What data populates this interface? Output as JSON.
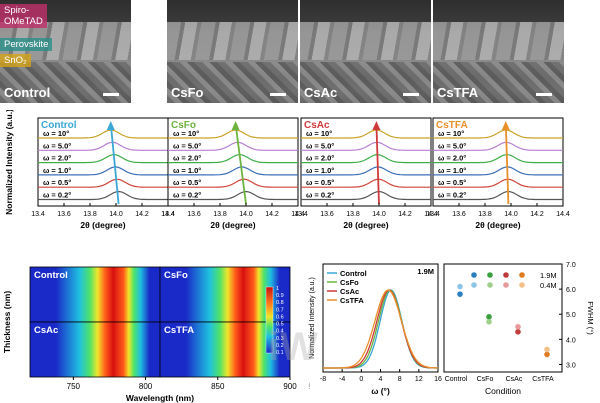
{
  "sem_panels": [
    {
      "label": "Control"
    },
    {
      "label": "CsFo"
    },
    {
      "label": "CsAc"
    },
    {
      "label": "CsTFA"
    }
  ],
  "sem_layers": [
    "Spiro-\nOMeTAD",
    "Perovskite",
    "SnO₂"
  ],
  "layer_colors": [
    "#c0306a",
    "#2a8f8a",
    "#d4a417"
  ],
  "gixrd": {
    "ylabel": "Normalized Intensity (a.u.)",
    "xlabel": "2θ (degree)",
    "xticks": [
      "13.4",
      "13.6",
      "13.8",
      "14.0",
      "14.2",
      "14.4"
    ],
    "omega_labels": [
      "ω = 10°",
      "ω = 5.0°",
      "ω = 2.0°",
      "ω = 1.0°",
      "ω = 0.5°",
      "ω = 0.2°"
    ],
    "series_colors": [
      "#c9a227",
      "#b87fd1",
      "#3fae49",
      "#3c6fb6",
      "#d0453a",
      "#555555"
    ],
    "panels": [
      {
        "title": "Control",
        "title_color": "#3aa7d6",
        "peak_start": 14.02,
        "peak_end": 13.96,
        "arrow_color": "#3aa7d6"
      },
      {
        "title": "CsFo",
        "title_color": "#6db33f",
        "peak_start": 14.0,
        "peak_end": 13.92,
        "arrow_color": "#6db33f"
      },
      {
        "title": "CsAc",
        "title_color": "#d03a3a",
        "peak_start": 14.0,
        "peak_end": 13.98,
        "arrow_color": "#d03a3a"
      },
      {
        "title": "CsTFA",
        "title_color": "#e8902a",
        "peak_start": 13.98,
        "peak_end": 13.96,
        "arrow_color": "#e8902a"
      }
    ]
  },
  "pl_map": {
    "ylabel": "Thickness (nm)",
    "xlabel": "Wavelength (nm)",
    "xticks": [
      "750",
      "800",
      "850",
      "900"
    ],
    "panels": [
      "Control",
      "CsFo",
      "CsAc",
      "CsTFA"
    ],
    "colorbar_ticks": [
      "1",
      "0.9",
      "0.8",
      "0.7",
      "0.6",
      "0.5",
      "0.4",
      "0.3",
      "0.2",
      "0.1"
    ],
    "extra_tick": "900"
  },
  "pl_spectra": {
    "chart_data": {
      "type": "line",
      "xlabel": "ω (°)",
      "ylabel": "Normalized Intensity (a.u.)",
      "xticks": [
        "-8",
        "-4",
        "0",
        "4",
        "8",
        "12",
        "16"
      ],
      "xlim": [
        -8,
        16
      ],
      "annotation": "1.9M",
      "series": [
        {
          "name": "Control",
          "color": "#3aa7d6",
          "center": 6.2,
          "width": 3.2
        },
        {
          "name": "CsFo",
          "color": "#6db33f",
          "center": 6.0,
          "width": 3.4
        },
        {
          "name": "CsAc",
          "color": "#d03a3a",
          "center": 5.8,
          "width": 3.6
        },
        {
          "name": "CsTFA",
          "color": "#e8902a",
          "center": 5.6,
          "width": 3.9
        }
      ]
    }
  },
  "fwhm": {
    "chart_data": {
      "type": "scatter",
      "xlabel": "Condition",
      "ylabel": "FWHM (°)",
      "categories": [
        "Control",
        "CsFo",
        "CsAc",
        "CsTFA"
      ],
      "yticks": [
        "3.0",
        "4.0",
        "5.0",
        "6.0",
        "7.0"
      ],
      "ylim": [
        2.7,
        7.0
      ],
      "legend": [
        "1.9M",
        "0.4M"
      ],
      "series": [
        {
          "name": "1.9M",
          "colors": [
            "#2a7fbf",
            "#3aa03f",
            "#c23a3a",
            "#e07a1f"
          ],
          "values": [
            5.8,
            4.9,
            4.3,
            3.4
          ]
        },
        {
          "name": "0.4M",
          "colors": [
            "#8cc4e8",
            "#9ed08a",
            "#e89a9a",
            "#f2bf86"
          ],
          "values": [
            6.1,
            4.7,
            4.5,
            3.6
          ]
        }
      ]
    }
  },
  "watermark": "iW"
}
